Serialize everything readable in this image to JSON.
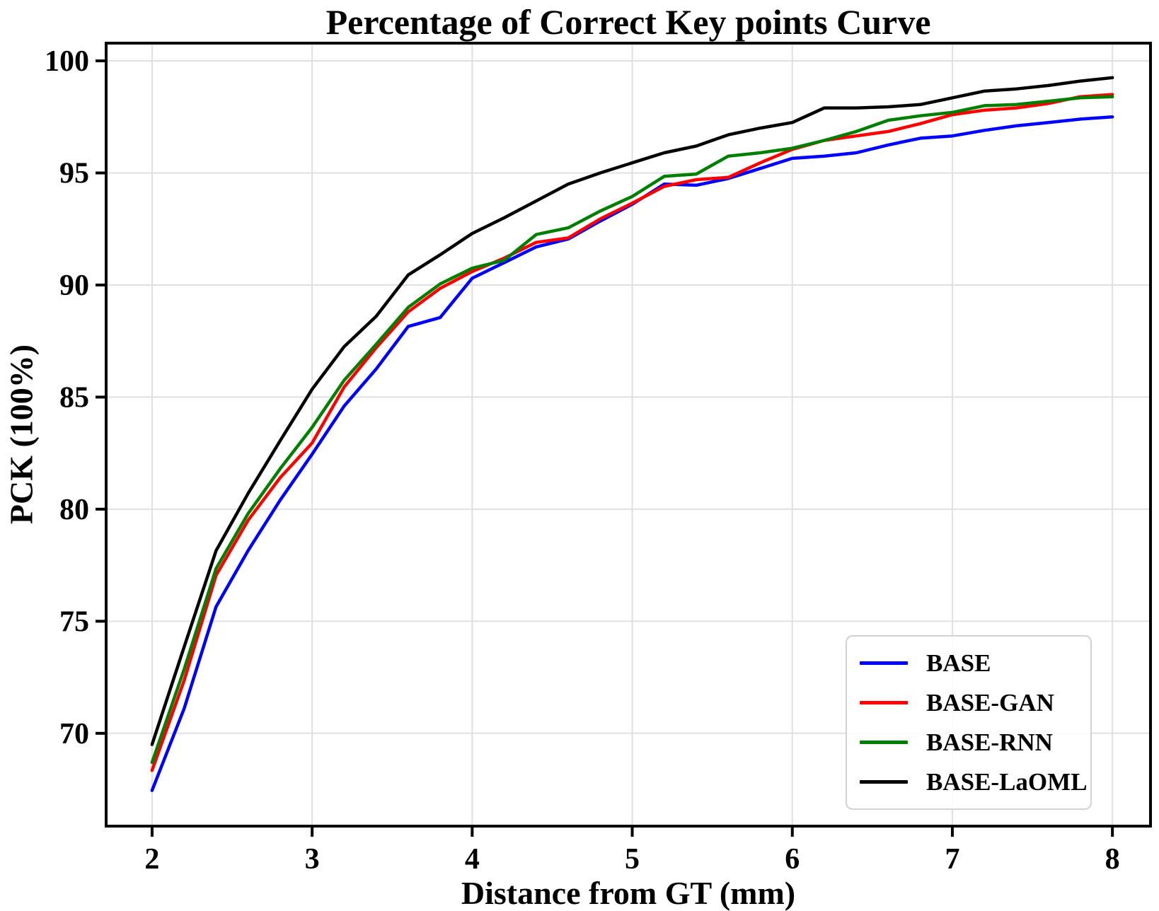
{
  "chart_data": {
    "type": "line",
    "title": "Percentage of Correct Key points Curve",
    "xlabel": "Distance from GT (mm)",
    "ylabel": "PCK (100%)",
    "grid": true,
    "grid_color": "#e0e0e0",
    "legend_position": "lower right",
    "x_ticks": [
      2,
      3,
      4,
      5,
      6,
      7,
      8
    ],
    "y_ticks": [
      70,
      75,
      80,
      85,
      90,
      95,
      100
    ],
    "xlim": [
      1.713,
      8.238
    ],
    "ylim": [
      65.86,
      100.79
    ],
    "x": [
      2.0,
      2.2,
      2.4,
      2.6,
      2.8,
      3.0,
      3.2,
      3.4,
      3.6,
      3.8,
      4.0,
      4.2,
      4.4,
      4.6,
      4.8,
      5.0,
      5.2,
      5.4,
      5.6,
      5.8,
      6.0,
      6.2,
      6.4,
      6.6,
      6.8,
      7.0,
      7.2,
      7.4,
      7.6,
      7.8,
      8.0
    ],
    "series": [
      {
        "name": "BASE",
        "color": "#0000ff",
        "values": [
          67.45,
          71.1,
          75.65,
          78.15,
          80.4,
          82.45,
          84.6,
          86.25,
          88.15,
          88.55,
          90.3,
          91.0,
          91.7,
          92.05,
          92.85,
          93.6,
          94.5,
          94.45,
          94.75,
          95.2,
          95.65,
          95.75,
          95.9,
          96.25,
          96.55,
          96.65,
          96.9,
          97.1,
          97.25,
          97.4,
          97.5
        ]
      },
      {
        "name": "BASE-GAN",
        "color": "#ff0000",
        "values": [
          68.35,
          72.35,
          77.05,
          79.5,
          81.4,
          82.95,
          85.45,
          87.2,
          88.8,
          89.85,
          90.6,
          91.2,
          91.9,
          92.1,
          92.95,
          93.65,
          94.4,
          94.7,
          94.8,
          95.45,
          96.05,
          96.45,
          96.65,
          96.85,
          97.2,
          97.6,
          97.8,
          97.9,
          98.1,
          98.4,
          98.5
        ]
      },
      {
        "name": "BASE-RNN",
        "color": "#008000",
        "values": [
          68.7,
          72.85,
          77.35,
          79.8,
          81.8,
          83.65,
          85.75,
          87.35,
          89.0,
          90.05,
          90.75,
          91.1,
          92.25,
          92.55,
          93.3,
          93.95,
          94.85,
          94.95,
          95.75,
          95.9,
          96.1,
          96.45,
          96.85,
          97.35,
          97.55,
          97.7,
          98.0,
          98.05,
          98.2,
          98.35,
          98.4
        ]
      },
      {
        "name": "BASE-LaOML",
        "color": "#000000",
        "values": [
          69.5,
          73.85,
          78.15,
          80.7,
          83.05,
          85.35,
          87.25,
          88.6,
          90.45,
          91.35,
          92.3,
          93.0,
          93.75,
          94.5,
          95.0,
          95.45,
          95.9,
          96.2,
          96.7,
          97.0,
          97.25,
          97.9,
          97.9,
          97.95,
          98.05,
          98.35,
          98.65,
          98.75,
          98.9,
          99.1,
          99.25
        ]
      }
    ]
  }
}
